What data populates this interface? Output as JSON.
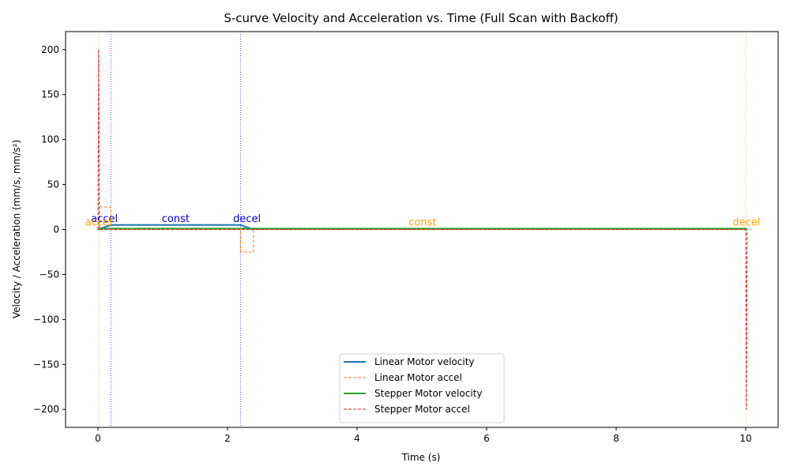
{
  "chart_data": {
    "type": "line",
    "title": "S-curve Velocity and Acceleration vs. Time (Full Scan with Backoff)",
    "xlabel": "Time (s)",
    "ylabel": "Velocity / Acceleration (mm/s, mm/s²)",
    "xlim": [
      -0.5,
      10.5
    ],
    "ylim": [
      -220,
      220
    ],
    "xticks": [
      0,
      2,
      4,
      6,
      8,
      10
    ],
    "xtick_labels": [
      "0",
      "2",
      "4",
      "6",
      "8",
      "10"
    ],
    "yticks": [
      -200,
      -150,
      -100,
      -50,
      0,
      50,
      100,
      150,
      200
    ],
    "ytick_labels": [
      "−200",
      "−150",
      "−100",
      "−50",
      "0",
      "50",
      "100",
      "150",
      "200"
    ],
    "grid": false,
    "legend_position": "lower-center",
    "series": [
      {
        "name": "Linear Motor velocity",
        "style": "solid",
        "color": "#1f77b4",
        "x": [
          0,
          0.2,
          2.2,
          2.4
        ],
        "y": [
          0,
          5,
          5,
          0
        ]
      },
      {
        "name": "Linear Motor accel",
        "style": "dashed",
        "color": "#ff7f0e",
        "x": [
          0,
          0,
          0.2,
          0.2,
          2.2,
          2.2,
          2.4,
          2.4,
          10
        ],
        "y": [
          0,
          25,
          25,
          0,
          0,
          -25,
          -25,
          0,
          0
        ]
      },
      {
        "name": "Stepper Motor velocity",
        "style": "solid",
        "color": "#2ca02c",
        "x": [
          0,
          0.02,
          10.0,
          10.02
        ],
        "y": [
          0,
          1,
          1,
          0
        ]
      },
      {
        "name": "Stepper Motor accel",
        "style": "dashed",
        "color": "#d62728",
        "x": [
          0,
          0.01,
          0.02,
          10.0,
          10.01,
          10.02
        ],
        "y": [
          0,
          200,
          0,
          0,
          -200,
          0
        ]
      }
    ],
    "phase_lines": [
      {
        "x": 0.2,
        "color": "#0000cc"
      },
      {
        "x": 2.2,
        "color": "#0000cc"
      },
      {
        "x": 0.02,
        "color": "#ffa500"
      },
      {
        "x": 10.0,
        "color": "#ffa500"
      }
    ],
    "annotations": [
      {
        "text": "accel",
        "x": 0.1,
        "y": 5,
        "color": "#0000cc"
      },
      {
        "text": "const",
        "x": 1.2,
        "y": 5,
        "color": "#0000cc"
      },
      {
        "text": "decel",
        "x": 2.3,
        "y": 5,
        "color": "#0000cc"
      },
      {
        "text": "accel",
        "x": 0.01,
        "y": 1,
        "color": "#ffa500"
      },
      {
        "text": "const",
        "x": 5.01,
        "y": 1,
        "color": "#ffa500"
      },
      {
        "text": "decel",
        "x": 10.01,
        "y": 1,
        "color": "#ffa500"
      }
    ]
  }
}
